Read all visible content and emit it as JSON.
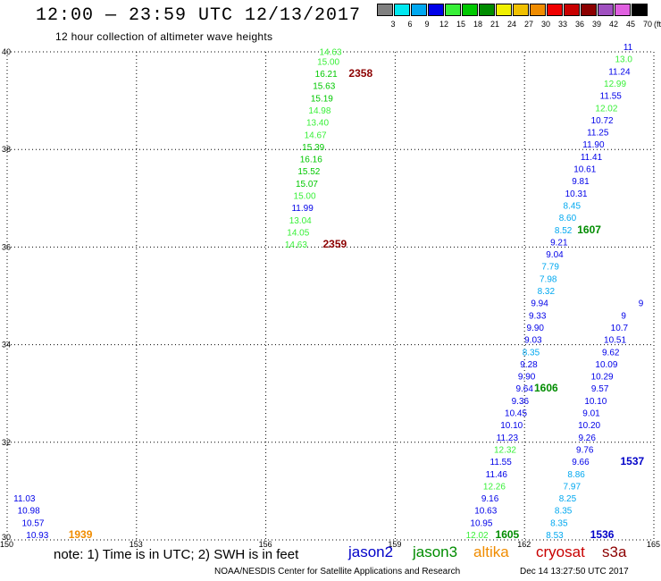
{
  "header": {
    "title": "12:00 — 23:59 UTC 12/13/2017",
    "subtitle": "12 hour collection of altimeter wave heights"
  },
  "color_scale": {
    "bins": [
      {
        "label": "3",
        "color": "#808080"
      },
      {
        "label": "6",
        "color": "#00e8f0"
      },
      {
        "label": "9",
        "color": "#00a8f0"
      },
      {
        "label": "12",
        "color": "#0000e8"
      },
      {
        "label": "15",
        "color": "#38f038"
      },
      {
        "label": "18",
        "color": "#00c800"
      },
      {
        "label": "21",
        "color": "#008c00"
      },
      {
        "label": "24",
        "color": "#f0f000"
      },
      {
        "label": "27",
        "color": "#f0c000"
      },
      {
        "label": "30",
        "color": "#f08c00"
      },
      {
        "label": "33",
        "color": "#f00000"
      },
      {
        "label": "36",
        "color": "#c80000"
      },
      {
        "label": "39",
        "color": "#8c0000"
      },
      {
        "label": "42",
        "color": "#a050c0"
      },
      {
        "label": "45",
        "color": "#e060e0"
      },
      {
        "label": "70",
        "color": "#000000"
      }
    ],
    "unit": "(ft)"
  },
  "footer": {
    "note": "note: 1) Time is in UTC; 2) SWH is in feet",
    "satellites": [
      {
        "name": "jason2",
        "color": "#0000c8"
      },
      {
        "name": "jason3",
        "color": "#008c00"
      },
      {
        "name": "altika",
        "color": "#f08c00"
      },
      {
        "name": "cryosat",
        "color": "#c80000"
      },
      {
        "name": "s3a",
        "color": "#8c0000"
      }
    ],
    "credit": "NOAA/NESDIS Center for Satellite Applications and Research",
    "timestamp": "Dec 14 13:27:50 UTC 2017"
  },
  "chart_data": {
    "type": "scatter",
    "title": "",
    "xlabel": "",
    "ylabel": "",
    "xlim": [
      150,
      165
    ],
    "ylim": [
      30,
      40
    ],
    "x_ticks": [
      "150",
      "153",
      "156",
      "159",
      "162",
      "165"
    ],
    "y_ticks": [
      "30",
      "32",
      "34",
      "36",
      "38",
      "40"
    ],
    "grid": true,
    "tracks": [
      {
        "satellite": "jason3",
        "points": [
          {
            "lon": 157.5,
            "lat": 39.9,
            "label": "14.63",
            "color": "#38f038"
          },
          {
            "lon": 157.45,
            "lat": 39.7,
            "label": "15.00",
            "color": "#38f038"
          },
          {
            "lon": 157.4,
            "lat": 39.45,
            "label": "16.21",
            "color": "#00c800"
          },
          {
            "lon": 157.35,
            "lat": 39.2,
            "label": "15.63",
            "color": "#00c800"
          },
          {
            "lon": 157.3,
            "lat": 38.95,
            "label": "15.19",
            "color": "#00c800"
          },
          {
            "lon": 157.25,
            "lat": 38.7,
            "label": "14.98",
            "color": "#38f038"
          },
          {
            "lon": 157.2,
            "lat": 38.45,
            "label": "13.40",
            "color": "#38f038"
          },
          {
            "lon": 157.15,
            "lat": 38.2,
            "label": "14.67",
            "color": "#38f038"
          },
          {
            "lon": 157.1,
            "lat": 37.95,
            "label": "15.39",
            "color": "#00c800"
          },
          {
            "lon": 157.05,
            "lat": 37.7,
            "label": "16.16",
            "color": "#00c800"
          },
          {
            "lon": 157.0,
            "lat": 37.45,
            "label": "15.52",
            "color": "#00c800"
          },
          {
            "lon": 156.95,
            "lat": 37.2,
            "label": "15.07",
            "color": "#00c800"
          },
          {
            "lon": 156.9,
            "lat": 36.95,
            "label": "15.00",
            "color": "#38f038"
          },
          {
            "lon": 156.85,
            "lat": 36.7,
            "label": "11.99",
            "color": "#0000e8"
          },
          {
            "lon": 156.8,
            "lat": 36.45,
            "label": "13.04",
            "color": "#38f038"
          },
          {
            "lon": 156.75,
            "lat": 36.2,
            "label": "14.05",
            "color": "#38f038"
          },
          {
            "lon": 156.7,
            "lat": 35.95,
            "label": "14.63",
            "color": "#38f038"
          }
        ]
      },
      {
        "satellite": "s3a",
        "points": [
          {
            "lon": 158.2,
            "lat": 39.45,
            "label": "2358",
            "color": "#8c0000",
            "time": true
          },
          {
            "lon": 157.6,
            "lat": 35.95,
            "label": "2359",
            "color": "#8c0000",
            "time": true
          }
        ]
      },
      {
        "satellite": "jason2",
        "points": [
          {
            "lon": 150.4,
            "lat": 30.75,
            "label": "11.03",
            "color": "#0000e8"
          },
          {
            "lon": 150.5,
            "lat": 30.5,
            "label": "10.98",
            "color": "#0000e8"
          },
          {
            "lon": 150.6,
            "lat": 30.25,
            "label": "10.57",
            "color": "#0000e8"
          },
          {
            "lon": 150.7,
            "lat": 30.0,
            "label": "10.93",
            "color": "#0000e8"
          }
        ]
      },
      {
        "satellite": "altika",
        "points": [
          {
            "lon": 151.7,
            "lat": 30.0,
            "label": "1939",
            "color": "#f08c00",
            "time": true
          }
        ]
      },
      {
        "satellite": "jason3",
        "points": [
          {
            "lon": 160.9,
            "lat": 30.0,
            "label": "12.02",
            "color": "#38f038"
          },
          {
            "lon": 161.0,
            "lat": 30.25,
            "label": "10.95",
            "color": "#0000e8"
          },
          {
            "lon": 161.1,
            "lat": 30.5,
            "label": "10.63",
            "color": "#0000e8"
          },
          {
            "lon": 161.2,
            "lat": 30.75,
            "label": "9.16",
            "color": "#0000e8"
          },
          {
            "lon": 161.3,
            "lat": 31.0,
            "label": "12.26",
            "color": "#38f038"
          },
          {
            "lon": 161.35,
            "lat": 31.25,
            "label": "11.46",
            "color": "#0000e8"
          },
          {
            "lon": 161.45,
            "lat": 31.5,
            "label": "11.55",
            "color": "#0000e8"
          },
          {
            "lon": 161.55,
            "lat": 31.75,
            "label": "12.32",
            "color": "#38f038"
          },
          {
            "lon": 161.6,
            "lat": 32.0,
            "label": "11.23",
            "color": "#0000e8"
          },
          {
            "lon": 161.7,
            "lat": 32.25,
            "label": "10.10",
            "color": "#0000e8"
          },
          {
            "lon": 161.8,
            "lat": 32.5,
            "label": "10.45",
            "color": "#0000e8"
          },
          {
            "lon": 161.9,
            "lat": 32.75,
            "label": "9.36",
            "color": "#0000e8"
          },
          {
            "lon": 162.0,
            "lat": 33.0,
            "label": "9.64",
            "color": "#0000e8"
          },
          {
            "lon": 162.05,
            "lat": 33.25,
            "label": "9.90",
            "color": "#0000e8"
          },
          {
            "lon": 162.1,
            "lat": 33.5,
            "label": "9.28",
            "color": "#0000e8"
          },
          {
            "lon": 162.15,
            "lat": 33.75,
            "label": "8.35",
            "color": "#00a8f0"
          },
          {
            "lon": 162.2,
            "lat": 34.0,
            "label": "9.03",
            "color": "#0000e8"
          },
          {
            "lon": 162.25,
            "lat": 34.25,
            "label": "9.90",
            "color": "#0000e8"
          },
          {
            "lon": 162.3,
            "lat": 34.5,
            "label": "9.33",
            "color": "#0000e8"
          },
          {
            "lon": 162.35,
            "lat": 34.75,
            "label": "9.94",
            "color": "#0000e8"
          },
          {
            "lon": 162.5,
            "lat": 35.0,
            "label": "8.32",
            "color": "#00a8f0"
          },
          {
            "lon": 162.55,
            "lat": 35.25,
            "label": "7.98",
            "color": "#00a8f0"
          },
          {
            "lon": 162.6,
            "lat": 35.5,
            "label": "7.79",
            "color": "#00a8f0"
          },
          {
            "lon": 162.7,
            "lat": 35.75,
            "label": "9.04",
            "color": "#0000e8"
          },
          {
            "lon": 162.8,
            "lat": 36.0,
            "label": "9.21",
            "color": "#0000e8"
          },
          {
            "lon": 162.9,
            "lat": 36.25,
            "label": "8.52",
            "color": "#00a8f0"
          },
          {
            "lon": 163.0,
            "lat": 36.5,
            "label": "8.60",
            "color": "#00a8f0"
          },
          {
            "lon": 163.1,
            "lat": 36.75,
            "label": "8.45",
            "color": "#00a8f0"
          },
          {
            "lon": 163.2,
            "lat": 37.0,
            "label": "10.31",
            "color": "#0000e8"
          },
          {
            "lon": 163.3,
            "lat": 37.25,
            "label": "9.81",
            "color": "#0000e8"
          },
          {
            "lon": 163.4,
            "lat": 37.5,
            "label": "10.61",
            "color": "#0000e8"
          },
          {
            "lon": 163.55,
            "lat": 37.75,
            "label": "11.41",
            "color": "#0000e8"
          },
          {
            "lon": 163.6,
            "lat": 38.0,
            "label": "11.90",
            "color": "#0000e8"
          },
          {
            "lon": 163.7,
            "lat": 38.25,
            "label": "11.25",
            "color": "#0000e8"
          },
          {
            "lon": 163.8,
            "lat": 38.5,
            "label": "10.72",
            "color": "#0000e8"
          },
          {
            "lon": 163.9,
            "lat": 38.75,
            "label": "12.02",
            "color": "#38f038"
          },
          {
            "lon": 164.0,
            "lat": 39.0,
            "label": "11.55",
            "color": "#0000e8"
          },
          {
            "lon": 164.1,
            "lat": 39.25,
            "label": "12.99",
            "color": "#38f038"
          },
          {
            "lon": 164.2,
            "lat": 39.5,
            "label": "11.24",
            "color": "#0000e8"
          },
          {
            "lon": 164.3,
            "lat": 39.75,
            "label": "13.0",
            "color": "#38f038"
          },
          {
            "lon": 164.4,
            "lat": 40.0,
            "label": "11",
            "color": "#0000e8"
          }
        ]
      },
      {
        "satellite": "jason3",
        "points": [
          {
            "lon": 161.6,
            "lat": 30.0,
            "label": "1605",
            "color": "#008c00",
            "time": true
          },
          {
            "lon": 162.5,
            "lat": 33.0,
            "label": "1606",
            "color": "#008c00",
            "time": true
          },
          {
            "lon": 163.5,
            "lat": 36.25,
            "label": "1607",
            "color": "#008c00",
            "time": true
          }
        ]
      },
      {
        "satellite": "jason2",
        "points": [
          {
            "lon": 162.7,
            "lat": 30.0,
            "label": "8.53",
            "color": "#00a8f0"
          },
          {
            "lon": 162.8,
            "lat": 30.25,
            "label": "8.35",
            "color": "#00a8f0"
          },
          {
            "lon": 162.9,
            "lat": 30.5,
            "label": "8.35",
            "color": "#00a8f0"
          },
          {
            "lon": 163.0,
            "lat": 30.75,
            "label": "8.25",
            "color": "#00a8f0"
          },
          {
            "lon": 163.1,
            "lat": 31.0,
            "label": "7.97",
            "color": "#00a8f0"
          },
          {
            "lon": 163.2,
            "lat": 31.25,
            "label": "8.86",
            "color": "#00a8f0"
          },
          {
            "lon": 163.3,
            "lat": 31.5,
            "label": "9.66",
            "color": "#0000e8"
          },
          {
            "lon": 163.4,
            "lat": 31.75,
            "label": "9.76",
            "color": "#0000e8"
          },
          {
            "lon": 163.45,
            "lat": 32.0,
            "label": "9.26",
            "color": "#0000e8"
          },
          {
            "lon": 163.5,
            "lat": 32.25,
            "label": "10.20",
            "color": "#0000e8"
          },
          {
            "lon": 163.55,
            "lat": 32.5,
            "label": "9.01",
            "color": "#0000e8"
          },
          {
            "lon": 163.65,
            "lat": 32.75,
            "label": "10.10",
            "color": "#0000e8"
          },
          {
            "lon": 163.75,
            "lat": 33.0,
            "label": "9.57",
            "color": "#0000e8"
          },
          {
            "lon": 163.8,
            "lat": 33.25,
            "label": "10.29",
            "color": "#0000e8"
          },
          {
            "lon": 163.9,
            "lat": 33.5,
            "label": "10.09",
            "color": "#0000e8"
          },
          {
            "lon": 164.0,
            "lat": 33.75,
            "label": "9.62",
            "color": "#0000e8"
          },
          {
            "lon": 164.1,
            "lat": 34.0,
            "label": "10.51",
            "color": "#0000e8"
          },
          {
            "lon": 164.2,
            "lat": 34.25,
            "label": "10.7",
            "color": "#0000e8"
          },
          {
            "lon": 164.3,
            "lat": 34.5,
            "label": "9",
            "color": "#0000e8"
          },
          {
            "lon": 164.7,
            "lat": 34.75,
            "label": "9",
            "color": "#0000e8"
          }
        ]
      },
      {
        "satellite": "jason2",
        "points": [
          {
            "lon": 163.8,
            "lat": 30.0,
            "label": "1536",
            "color": "#0000c8",
            "time": true
          },
          {
            "lon": 164.5,
            "lat": 31.5,
            "label": "1537",
            "color": "#0000c8",
            "time": true
          }
        ]
      }
    ]
  }
}
